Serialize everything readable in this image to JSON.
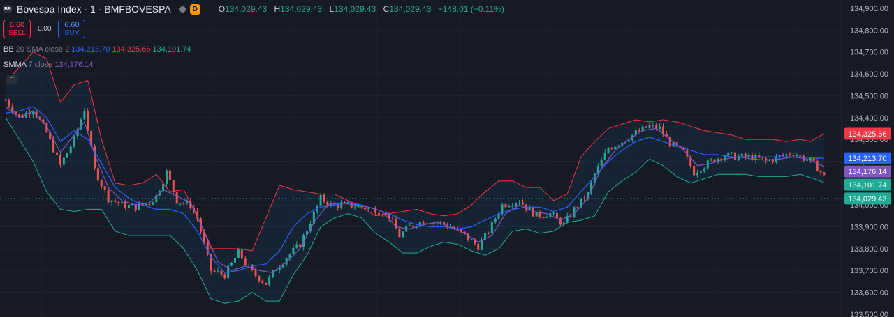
{
  "header": {
    "symbol_icon": "BB",
    "symbol_title": "Bovespa Index · 1 · BMFBOVESPA",
    "interval_badge": "D",
    "ohlc": [
      {
        "key": "O",
        "value": "134,029.43"
      },
      {
        "key": "H",
        "value": "134,029.43"
      },
      {
        "key": "L",
        "value": "134,029.43"
      },
      {
        "key": "C",
        "value": "134,029.43"
      }
    ],
    "change": "−148.01 (−0.11%)"
  },
  "trade": {
    "sell_price": "6.60",
    "sell_label": "SELL",
    "spread": "0.00",
    "buy_price": "6.60",
    "buy_label": "BUY"
  },
  "indicators": {
    "bb": {
      "name": "BB",
      "args": "20 SMA close 2",
      "basis": "134,213.70",
      "upper": "134,325.66",
      "lower": "134,101.74"
    },
    "smma": {
      "name": "SMMA",
      "args": "7 close",
      "value": "134,176.14"
    }
  },
  "colors": {
    "background": "#161a25",
    "up": "#26a69a",
    "down": "#ef5350",
    "bb_upper": "#f23645",
    "bb_lower": "#22ab94",
    "bb_basis": "#2962ff",
    "smma": "#7e57c2"
  },
  "chart_data": {
    "type": "candlestick",
    "title": "Bovespa Index · 1 · BMFBOVESPA",
    "ylim": [
      133500,
      134900
    ],
    "y_ticks": [
      "134,900.00",
      "134,800.00",
      "134,700.00",
      "134,600.00",
      "134,500.00",
      "134,400.00",
      "134,300.00",
      "134,200.00",
      "134,100.00",
      "134,000.00",
      "133,900.00",
      "133,800.00",
      "133,700.00",
      "133,600.00",
      "133,500.00"
    ],
    "y_tick_values": [
      134900,
      134800,
      134700,
      134600,
      134500,
      134400,
      134300,
      134200,
      134100,
      134000,
      133900,
      133800,
      133700,
      133600,
      133500
    ],
    "close_path": [
      [
        0,
        134480
      ],
      [
        4,
        134400
      ],
      [
        8,
        134440
      ],
      [
        12,
        134330
      ],
      [
        16,
        134180
      ],
      [
        20,
        134300
      ],
      [
        23,
        134440
      ],
      [
        26,
        134160
      ],
      [
        30,
        134030
      ],
      [
        34,
        134000
      ],
      [
        38,
        133990
      ],
      [
        42,
        134010
      ],
      [
        44,
        134040
      ],
      [
        47,
        134150
      ],
      [
        50,
        134020
      ],
      [
        54,
        134000
      ],
      [
        56,
        133940
      ],
      [
        60,
        133700
      ],
      [
        64,
        133680
      ],
      [
        68,
        133780
      ],
      [
        72,
        133690
      ],
      [
        76,
        133640
      ],
      [
        79,
        133710
      ],
      [
        82,
        133760
      ],
      [
        86,
        133820
      ],
      [
        90,
        133960
      ],
      [
        92,
        134030
      ],
      [
        95,
        134000
      ],
      [
        100,
        134000
      ],
      [
        104,
        133990
      ],
      [
        108,
        133980
      ],
      [
        112,
        133950
      ],
      [
        115,
        133860
      ],
      [
        118,
        133900
      ],
      [
        122,
        133930
      ],
      [
        126,
        133920
      ],
      [
        130,
        133900
      ],
      [
        134,
        133860
      ],
      [
        138,
        133810
      ],
      [
        141,
        133880
      ],
      [
        145,
        134000
      ],
      [
        150,
        134020
      ],
      [
        155,
        133950
      ],
      [
        159,
        133960
      ],
      [
        163,
        133910
      ],
      [
        166,
        133980
      ],
      [
        170,
        134050
      ],
      [
        172,
        134140
      ],
      [
        176,
        134260
      ],
      [
        180,
        134290
      ],
      [
        184,
        134330
      ],
      [
        188,
        134360
      ],
      [
        191,
        134350
      ],
      [
        194,
        134280
      ],
      [
        198,
        134240
      ],
      [
        201,
        134150
      ],
      [
        203,
        134170
      ],
      [
        206,
        134200
      ],
      [
        210,
        134230
      ],
      [
        214,
        134220
      ],
      [
        218,
        134220
      ],
      [
        222,
        134200
      ],
      [
        226,
        134220
      ],
      [
        230,
        134240
      ],
      [
        232,
        134220
      ],
      [
        235,
        134200
      ],
      [
        237,
        134170
      ],
      [
        239,
        134130
      ]
    ],
    "bb_upper": [
      [
        0,
        134560
      ],
      [
        8,
        134700
      ],
      [
        12,
        134670
      ],
      [
        16,
        134470
      ],
      [
        20,
        134550
      ],
      [
        24,
        134570
      ],
      [
        28,
        134300
      ],
      [
        32,
        134100
      ],
      [
        36,
        134090
      ],
      [
        40,
        134100
      ],
      [
        44,
        134140
      ],
      [
        48,
        134060
      ],
      [
        52,
        134070
      ],
      [
        56,
        133950
      ],
      [
        60,
        133800
      ],
      [
        68,
        133800
      ],
      [
        72,
        133790
      ],
      [
        76,
        133940
      ],
      [
        80,
        134090
      ],
      [
        84,
        134070
      ],
      [
        88,
        134060
      ],
      [
        92,
        134050
      ],
      [
        96,
        134050
      ],
      [
        100,
        134020
      ],
      [
        104,
        133990
      ],
      [
        108,
        133950
      ],
      [
        112,
        133960
      ],
      [
        116,
        133970
      ],
      [
        120,
        133980
      ],
      [
        124,
        133960
      ],
      [
        128,
        133950
      ],
      [
        132,
        133960
      ],
      [
        136,
        134000
      ],
      [
        140,
        134060
      ],
      [
        144,
        134110
      ],
      [
        148,
        134110
      ],
      [
        152,
        134080
      ],
      [
        156,
        134080
      ],
      [
        160,
        134020
      ],
      [
        164,
        134050
      ],
      [
        168,
        134220
      ],
      [
        172,
        134290
      ],
      [
        176,
        134350
      ],
      [
        180,
        134370
      ],
      [
        184,
        134390
      ],
      [
        188,
        134380
      ],
      [
        192,
        134390
      ],
      [
        196,
        134380
      ],
      [
        200,
        134360
      ],
      [
        204,
        134340
      ],
      [
        208,
        134330
      ],
      [
        212,
        134320
      ],
      [
        216,
        134300
      ],
      [
        220,
        134300
      ],
      [
        224,
        134300
      ],
      [
        228,
        134290
      ],
      [
        232,
        134300
      ],
      [
        235,
        134290
      ],
      [
        237,
        134310
      ],
      [
        239,
        134325.66
      ]
    ],
    "bb_basis": [
      [
        0,
        134420
      ],
      [
        4,
        134430
      ],
      [
        8,
        134450
      ],
      [
        12,
        134400
      ],
      [
        16,
        134290
      ],
      [
        20,
        134340
      ],
      [
        24,
        134300
      ],
      [
        28,
        134190
      ],
      [
        32,
        134080
      ],
      [
        36,
        134030
      ],
      [
        40,
        134000
      ],
      [
        44,
        133980
      ],
      [
        48,
        133980
      ],
      [
        52,
        133960
      ],
      [
        56,
        133880
      ],
      [
        60,
        133760
      ],
      [
        64,
        133690
      ],
      [
        68,
        133700
      ],
      [
        72,
        133720
      ],
      [
        76,
        133730
      ],
      [
        80,
        133790
      ],
      [
        84,
        133900
      ],
      [
        88,
        133960
      ],
      [
        92,
        133990
      ],
      [
        96,
        134000
      ],
      [
        100,
        134010
      ],
      [
        104,
        134000
      ],
      [
        108,
        133980
      ],
      [
        112,
        133960
      ],
      [
        116,
        133930
      ],
      [
        120,
        133910
      ],
      [
        124,
        133900
      ],
      [
        128,
        133900
      ],
      [
        132,
        133890
      ],
      [
        136,
        133900
      ],
      [
        140,
        133930
      ],
      [
        144,
        133960
      ],
      [
        148,
        133980
      ],
      [
        152,
        133990
      ],
      [
        156,
        133990
      ],
      [
        160,
        133970
      ],
      [
        164,
        133990
      ],
      [
        168,
        134060
      ],
      [
        172,
        134130
      ],
      [
        176,
        134200
      ],
      [
        180,
        134250
      ],
      [
        184,
        134290
      ],
      [
        188,
        134310
      ],
      [
        192,
        134290
      ],
      [
        196,
        134270
      ],
      [
        200,
        134250
      ],
      [
        204,
        134230
      ],
      [
        208,
        134230
      ],
      [
        212,
        134220
      ],
      [
        216,
        134220
      ],
      [
        220,
        134220
      ],
      [
        224,
        134220
      ],
      [
        228,
        134220
      ],
      [
        232,
        134220
      ],
      [
        236,
        134215
      ],
      [
        239,
        134213.7
      ]
    ],
    "bb_lower": [
      [
        0,
        134400
      ],
      [
        4,
        134300
      ],
      [
        8,
        134200
      ],
      [
        12,
        134060
      ],
      [
        16,
        133980
      ],
      [
        20,
        133970
      ],
      [
        24,
        133980
      ],
      [
        28,
        133980
      ],
      [
        32,
        133880
      ],
      [
        36,
        133860
      ],
      [
        40,
        133860
      ],
      [
        44,
        133860
      ],
      [
        48,
        133860
      ],
      [
        52,
        133800
      ],
      [
        56,
        133700
      ],
      [
        60,
        133570
      ],
      [
        64,
        133550
      ],
      [
        68,
        133560
      ],
      [
        72,
        133600
      ],
      [
        76,
        133560
      ],
      [
        80,
        133560
      ],
      [
        84,
        133680
      ],
      [
        88,
        133770
      ],
      [
        92,
        133900
      ],
      [
        96,
        133940
      ],
      [
        100,
        133960
      ],
      [
        104,
        133940
      ],
      [
        108,
        133870
      ],
      [
        112,
        133830
      ],
      [
        116,
        133780
      ],
      [
        120,
        133780
      ],
      [
        124,
        133810
      ],
      [
        128,
        133830
      ],
      [
        132,
        133820
      ],
      [
        136,
        133790
      ],
      [
        140,
        133770
      ],
      [
        144,
        133800
      ],
      [
        148,
        133880
      ],
      [
        152,
        133890
      ],
      [
        156,
        133870
      ],
      [
        160,
        133880
      ],
      [
        164,
        133920
      ],
      [
        168,
        133930
      ],
      [
        172,
        133950
      ],
      [
        176,
        134060
      ],
      [
        180,
        134110
      ],
      [
        184,
        134150
      ],
      [
        188,
        134210
      ],
      [
        192,
        134180
      ],
      [
        196,
        134130
      ],
      [
        200,
        134100
      ],
      [
        204,
        134120
      ],
      [
        208,
        134140
      ],
      [
        212,
        134140
      ],
      [
        216,
        134140
      ],
      [
        220,
        134130
      ],
      [
        224,
        134130
      ],
      [
        228,
        134130
      ],
      [
        232,
        134140
      ],
      [
        236,
        134120
      ],
      [
        239,
        134101.74
      ]
    ],
    "smma": [
      [
        0,
        134450
      ],
      [
        4,
        134400
      ],
      [
        8,
        134430
      ],
      [
        12,
        134360
      ],
      [
        16,
        134240
      ],
      [
        20,
        134320
      ],
      [
        23,
        134380
      ],
      [
        26,
        134230
      ],
      [
        30,
        134080
      ],
      [
        34,
        134020
      ],
      [
        38,
        134000
      ],
      [
        42,
        134010
      ],
      [
        46,
        134070
      ],
      [
        50,
        134040
      ],
      [
        54,
        134010
      ],
      [
        58,
        133880
      ],
      [
        62,
        133740
      ],
      [
        66,
        133700
      ],
      [
        70,
        133720
      ],
      [
        74,
        133700
      ],
      [
        78,
        133690
      ],
      [
        82,
        133740
      ],
      [
        86,
        133800
      ],
      [
        90,
        133920
      ],
      [
        94,
        134000
      ],
      [
        98,
        134010
      ],
      [
        102,
        134000
      ],
      [
        106,
        133990
      ],
      [
        110,
        133970
      ],
      [
        114,
        133900
      ],
      [
        118,
        133890
      ],
      [
        122,
        133910
      ],
      [
        126,
        133920
      ],
      [
        130,
        133900
      ],
      [
        134,
        133870
      ],
      [
        138,
        133830
      ],
      [
        142,
        133860
      ],
      [
        146,
        133960
      ],
      [
        150,
        134000
      ],
      [
        154,
        133970
      ],
      [
        158,
        133960
      ],
      [
        162,
        133930
      ],
      [
        166,
        133960
      ],
      [
        170,
        134030
      ],
      [
        174,
        134170
      ],
      [
        178,
        134250
      ],
      [
        182,
        134300
      ],
      [
        186,
        134340
      ],
      [
        190,
        134350
      ],
      [
        194,
        134300
      ],
      [
        198,
        134250
      ],
      [
        202,
        134180
      ],
      [
        206,
        134190
      ],
      [
        210,
        134210
      ],
      [
        214,
        134220
      ],
      [
        218,
        134210
      ],
      [
        222,
        134205
      ],
      [
        226,
        134210
      ],
      [
        230,
        134220
      ],
      [
        234,
        134210
      ],
      [
        237,
        134190
      ],
      [
        239,
        134176.14
      ]
    ],
    "price_tags": [
      {
        "label": "134,325.66",
        "value": 134325.66,
        "color": "#f23645"
      },
      {
        "label": "134,213.70",
        "value": 134213.7,
        "color": "#2962ff"
      },
      {
        "label": "134,176.14",
        "value": 134176.14,
        "color": "#7e57c2"
      },
      {
        "label": "134,101.74",
        "value": 134101.74,
        "color": "#22ab94"
      },
      {
        "label": "134,029.43",
        "value": 134029.43,
        "color": "#22ab94"
      }
    ],
    "last_price": 134029.43
  }
}
